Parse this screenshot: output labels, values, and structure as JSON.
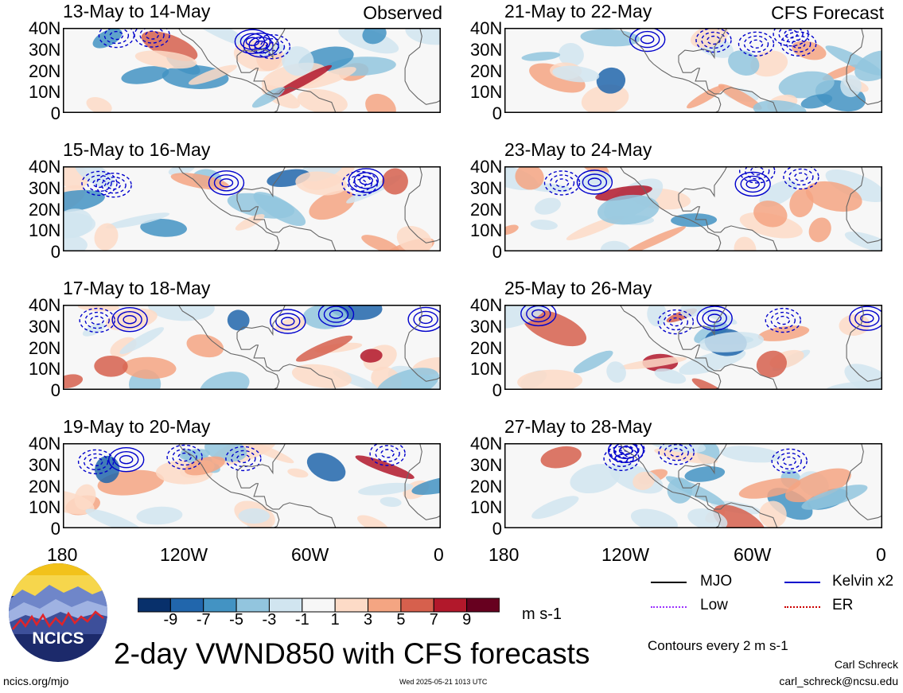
{
  "header": {
    "observed_label": "Observed",
    "forecast_label": "CFS Forecast"
  },
  "chart_data": {
    "type": "heatmap",
    "title": "2-day VWND850 with CFS forecasts",
    "variable": "850 hPa meridional wind anomaly",
    "units": "m s-1",
    "y_ticks": [
      "40N",
      "30N",
      "20N",
      "10N",
      "0"
    ],
    "x_ticks": [
      "180",
      "120W",
      "60W",
      "0"
    ],
    "lon_range": [
      -180,
      0
    ],
    "lat_range": [
      0,
      40
    ],
    "colorbar": {
      "levels": [
        "-9",
        "-7",
        "-5",
        "-3",
        "-1",
        "1",
        "3",
        "5",
        "7",
        "9"
      ],
      "colors": [
        "#08306b",
        "#2166ac",
        "#4393c3",
        "#92c5de",
        "#d1e5f0",
        "#f7f7f7",
        "#fddbc7",
        "#f4a582",
        "#d6604d",
        "#b2182b",
        "#67001f"
      ]
    },
    "panels_observed": [
      {
        "title": "13-May to 14-May",
        "tag": "Observed"
      },
      {
        "title": "15-May to 16-May"
      },
      {
        "title": "17-May to 18-May"
      },
      {
        "title": "19-May to 20-May"
      }
    ],
    "panels_forecast": [
      {
        "title": "21-May to 22-May",
        "tag": "CFS Forecast"
      },
      {
        "title": "23-May to 24-May"
      },
      {
        "title": "25-May to 26-May"
      },
      {
        "title": "27-May to 28-May"
      }
    ],
    "legend": [
      {
        "label": "MJO",
        "color": "#000000",
        "style": "solid"
      },
      {
        "label": "Kelvin x2",
        "color": "#0000cc",
        "style": "solid"
      },
      {
        "label": "Low",
        "color": "#9b30ff",
        "style": "dotted"
      },
      {
        "label": "ER",
        "color": "#cc0000",
        "style": "dotted"
      }
    ],
    "contour_note": "Contours every 2 m s-1"
  },
  "footer": {
    "logo_text": "NCICS",
    "site": "ncics.org/mjo",
    "timestamp": "Wed 2025-05-21 1013 UTC",
    "author": "Carl Schreck",
    "email": "carl_schreck@ncsu.edu"
  }
}
